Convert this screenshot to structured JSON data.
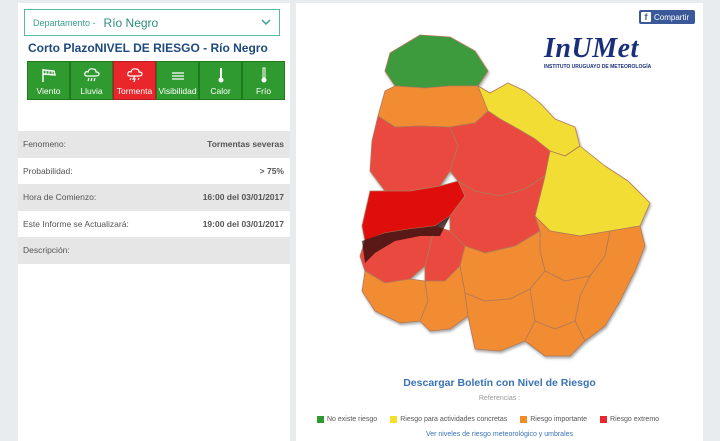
{
  "departamento": {
    "label": "Departamento -",
    "value": "Río Negro"
  },
  "title": "Corto PlazoNIVEL DE RIESGO - Río Negro",
  "icons": [
    {
      "label": "Viento",
      "icon": "wind-flag-icon",
      "color": "#2f9a2f"
    },
    {
      "label": "Lluvia",
      "icon": "rain-cloud-icon",
      "color": "#2f9a2f"
    },
    {
      "label": "Tormenta",
      "icon": "storm-cloud-icon",
      "color": "#e8262b"
    },
    {
      "label": "Visibilidad",
      "icon": "fog-lines-icon",
      "color": "#2f9a2f"
    },
    {
      "label": "Calor",
      "icon": "thermometer-hot-icon",
      "color": "#2f9a2f"
    },
    {
      "label": "Frío",
      "icon": "thermometer-cold-icon",
      "color": "#2f9a2f"
    }
  ],
  "info": {
    "fenomeno": {
      "label": "Fenomeno:",
      "value": "Tormentas severas"
    },
    "probabilidad": {
      "label": "Probabilidad:",
      "value": "> 75%"
    },
    "hora": {
      "label": "Hora de Comienzo:",
      "value": "16:00 del 03/01/2017"
    },
    "actualizara": {
      "label": "Este Informe se Actualizará:",
      "value": "19:00 del 03/01/2017"
    },
    "descripcion": {
      "label": "Descripción:",
      "value": ""
    }
  },
  "share": "Compartir",
  "logo": {
    "main": "InUMet",
    "sub": "INSTITUTO URUGUAYO DE METEOROLOGÍA"
  },
  "download": "Descargar Boletín con Nivel de Riesgo",
  "references": "Referencias :",
  "legend": [
    {
      "label": "No existe riesgo",
      "color": "#2e9a2e"
    },
    {
      "label": "Riesgo para actividades concretas",
      "color": "#f2e02a"
    },
    {
      "label": "Riesgo importante",
      "color": "#f28c28"
    },
    {
      "label": "Riesgo extremo",
      "color": "#e8262b"
    }
  ],
  "more_link": "Ver niveles de riesgo meteorológico y umbrales"
}
